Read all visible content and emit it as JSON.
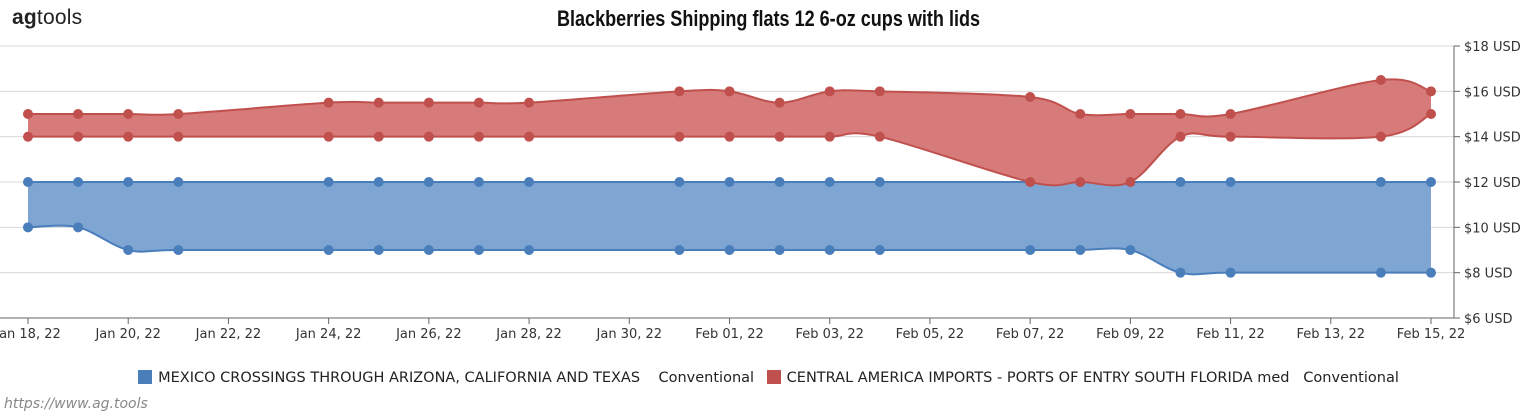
{
  "logo": {
    "bold": "ag",
    "rest": "tools"
  },
  "source_url": "https://www.ag.tools",
  "chart_data": {
    "type": "area",
    "title": "Blackberries Shipping  flats 12 6-oz cups with lids",
    "ylim": [
      6,
      18
    ],
    "y_ticks": [
      6,
      8,
      10,
      12,
      14,
      16,
      18
    ],
    "y_tick_labels": [
      "$6 USD",
      "$8 USD",
      "$10 USD",
      "$12 USD",
      "$14 USD",
      "$16 USD",
      "$18 USD"
    ],
    "x_ticks": [
      "2022-01-18",
      "2022-01-20",
      "2022-01-22",
      "2022-01-24",
      "2022-01-26",
      "2022-01-28",
      "2022-01-30",
      "2022-02-01",
      "2022-02-03",
      "2022-02-05",
      "2022-02-07",
      "2022-02-09",
      "2022-02-11",
      "2022-02-13",
      "2022-02-15"
    ],
    "x_tick_labels": [
      "Jan 18, 22",
      "Jan 20, 22",
      "Jan 22, 22",
      "Jan 24, 22",
      "Jan 26, 22",
      "Jan 28, 22",
      "Jan 30, 22",
      "Feb 01, 22",
      "Feb 03, 22",
      "Feb 05, 22",
      "Feb 07, 22",
      "Feb 09, 22",
      "Feb 11, 22",
      "Feb 13, 22",
      "Feb 15, 22"
    ],
    "grid": true,
    "legend_position": "bottom-center",
    "series": [
      {
        "name": "MEXICO CROSSINGS THROUGH ARIZONA, CALIFORNIA AND TEXAS    Conventional",
        "color": "#4a7ebb",
        "fill": "#7fa5d2",
        "x": [
          "2022-01-18",
          "2022-01-19",
          "2022-01-20",
          "2022-01-21",
          "2022-01-24",
          "2022-01-25",
          "2022-01-26",
          "2022-01-27",
          "2022-01-28",
          "2022-01-31",
          "2022-02-01",
          "2022-02-02",
          "2022-02-03",
          "2022-02-04",
          "2022-02-07",
          "2022-02-08",
          "2022-02-09",
          "2022-02-10",
          "2022-02-11",
          "2022-02-14",
          "2022-02-15"
        ],
        "high": [
          12,
          12,
          12,
          12,
          12,
          12,
          12,
          12,
          12,
          12,
          12,
          12,
          12,
          12,
          12,
          12,
          12,
          12,
          12,
          12,
          12
        ],
        "low": [
          10,
          10,
          9,
          9,
          9,
          9,
          9,
          9,
          9,
          9,
          9,
          9,
          9,
          9,
          9,
          9,
          9,
          8,
          8,
          8,
          8
        ]
      },
      {
        "name": "CENTRAL AMERICA IMPORTS - PORTS OF ENTRY SOUTH FLORIDA med   Conventional",
        "color": "#c0504d",
        "fill": "#d67b79",
        "x": [
          "2022-01-18",
          "2022-01-19",
          "2022-01-20",
          "2022-01-21",
          "2022-01-24",
          "2022-01-25",
          "2022-01-26",
          "2022-01-27",
          "2022-01-28",
          "2022-01-31",
          "2022-02-01",
          "2022-02-02",
          "2022-02-03",
          "2022-02-04",
          "2022-02-07",
          "2022-02-08",
          "2022-02-09",
          "2022-02-10",
          "2022-02-11",
          "2022-02-14",
          "2022-02-15"
        ],
        "high": [
          15,
          15,
          15,
          15,
          15.5,
          15.5,
          15.5,
          15.5,
          15.5,
          16,
          16,
          15.5,
          16,
          16,
          15.75,
          15,
          15,
          15,
          15,
          16.5,
          16
        ],
        "low": [
          14,
          14,
          14,
          14,
          14,
          14,
          14,
          14,
          14,
          14,
          14,
          14,
          14,
          14,
          12,
          12,
          12,
          14,
          14,
          14,
          15
        ]
      }
    ]
  }
}
